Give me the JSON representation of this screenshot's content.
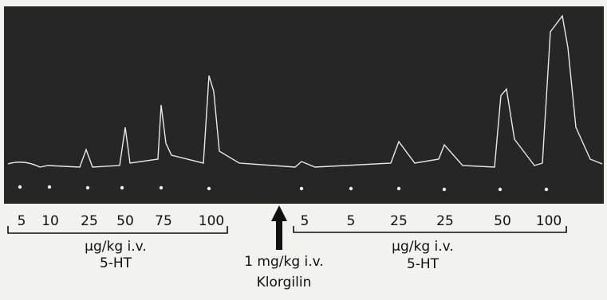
{
  "left_group": {
    "doses": [
      "5",
      "10",
      "25",
      "50",
      "75",
      "100"
    ],
    "unit": "µg/kg i.v.",
    "drug": "5-HT"
  },
  "right_group": {
    "doses": [
      "5",
      "5",
      "25",
      "25",
      "50",
      "100"
    ],
    "unit": "µg/kg i.v.",
    "drug": "5-HT"
  },
  "treatment": {
    "dose": "1 mg/kg i.v.",
    "drug": "Klorgilin"
  }
}
